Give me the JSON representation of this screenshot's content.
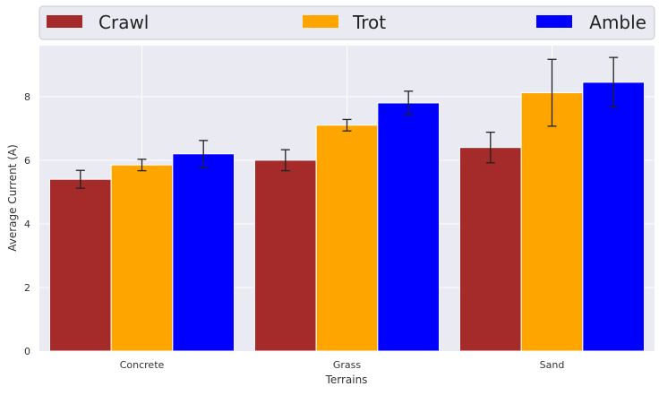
{
  "chart_data": {
    "type": "bar",
    "title": "",
    "xlabel": "Terrains",
    "ylabel": "Average Current (A)",
    "categories": [
      "Concrete",
      "Grass",
      "Sand"
    ],
    "ylim": [
      0,
      9.6
    ],
    "yticks": [
      "0",
      "2",
      "4",
      "6",
      "8"
    ],
    "grid": true,
    "legend_position": "top",
    "series": [
      {
        "name": "Crawl",
        "color": "#A52A2A",
        "values": [
          5.4,
          6.0,
          6.4
        ],
        "errors": [
          0.28,
          0.33,
          0.48
        ]
      },
      {
        "name": "Trot",
        "color": "#FFA500",
        "values": [
          5.85,
          7.1,
          8.12
        ],
        "errors": [
          0.18,
          0.18,
          1.05
        ]
      },
      {
        "name": "Amble",
        "color": "#0000FF",
        "values": [
          6.2,
          7.8,
          8.45
        ],
        "errors": [
          0.42,
          0.37,
          0.78
        ]
      }
    ]
  }
}
